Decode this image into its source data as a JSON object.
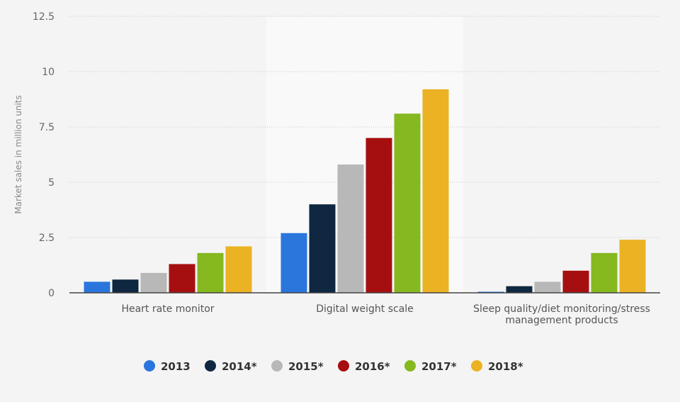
{
  "chart_data": {
    "type": "bar",
    "title": "",
    "xlabel": "",
    "ylabel": "Market sales in million units",
    "ylim": [
      0,
      12.5
    ],
    "yticks": [
      0,
      2.5,
      5,
      7.5,
      10,
      12.5
    ],
    "ytick_labels": [
      "0",
      "2.5",
      "5",
      "7.5",
      "10",
      "12.5"
    ],
    "grid": true,
    "legend_position": "bottom",
    "categories": [
      [
        "Heart rate monitor"
      ],
      [
        "Digital weight scale"
      ],
      [
        "Sleep quality/diet monitoring/stress",
        "management products"
      ]
    ],
    "series": [
      {
        "name": "2013",
        "color": "#2a76dd",
        "values": [
          0.5,
          2.7,
          0.05
        ]
      },
      {
        "name": "2014*",
        "color": "#0f2740",
        "values": [
          0.6,
          4.0,
          0.3
        ]
      },
      {
        "name": "2015*",
        "color": "#b8b8b8",
        "values": [
          0.9,
          5.8,
          0.5
        ]
      },
      {
        "name": "2016*",
        "color": "#a60f10",
        "values": [
          1.3,
          7.0,
          1.0
        ]
      },
      {
        "name": "2017*",
        "color": "#86b81f",
        "values": [
          1.8,
          8.1,
          1.8
        ]
      },
      {
        "name": "2018*",
        "color": "#ebb223",
        "values": [
          2.1,
          9.2,
          2.4
        ]
      }
    ]
  }
}
